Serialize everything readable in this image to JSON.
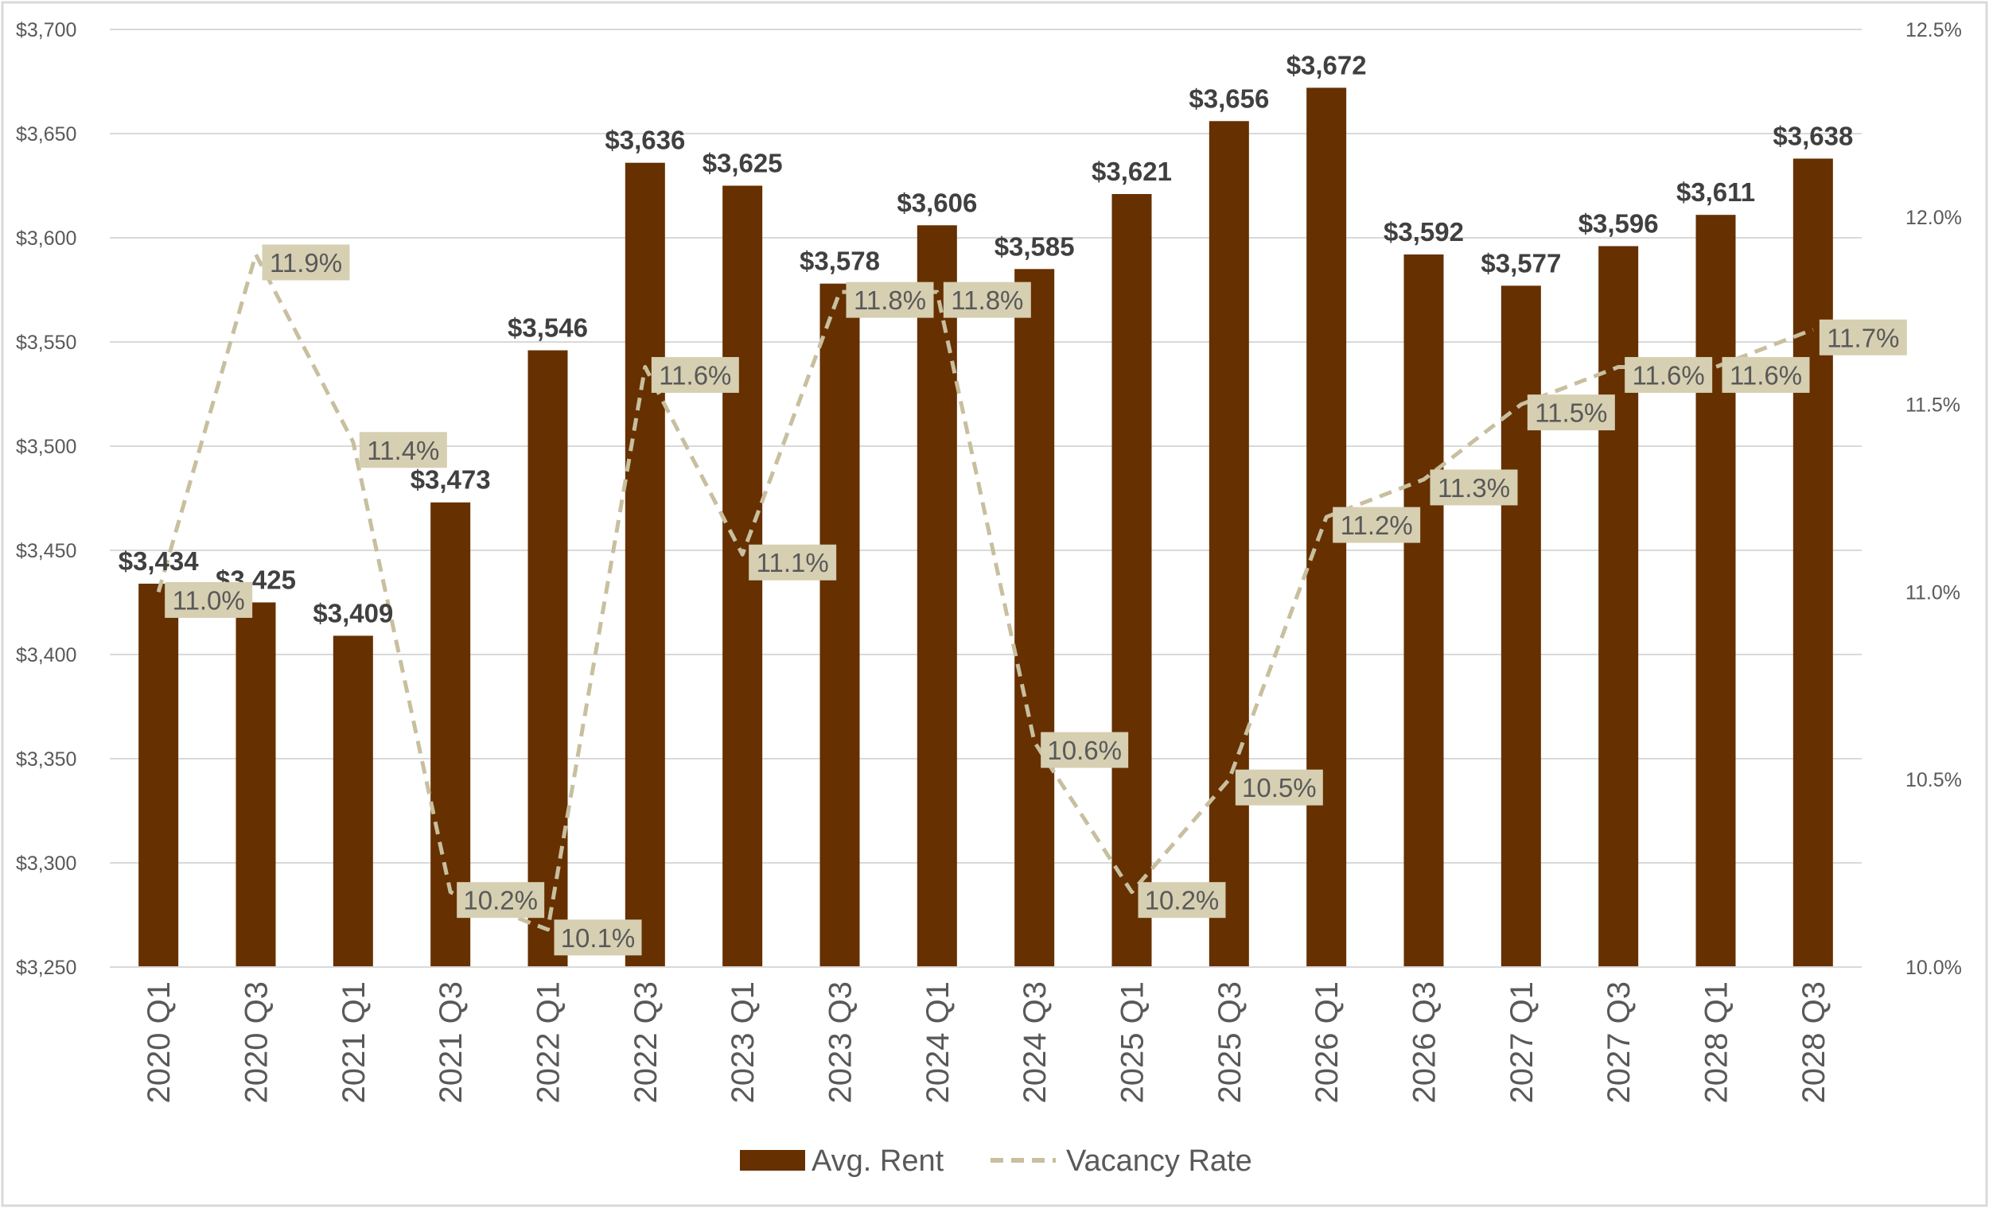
{
  "chart_data": {
    "type": "bar",
    "categories": [
      "2020 Q1",
      "2020 Q3",
      "2021 Q1",
      "2021 Q3",
      "2022 Q1",
      "2022 Q3",
      "2023 Q1",
      "2023 Q3",
      "2024 Q1",
      "2024 Q3",
      "2025 Q1",
      "2025 Q3",
      "2026 Q1",
      "2026 Q3",
      "2027 Q1",
      "2027 Q3",
      "2028 Q1",
      "2028 Q3"
    ],
    "series": [
      {
        "name": "Avg. Rent",
        "type": "bar",
        "axis": "left",
        "color": "#663000",
        "values": [
          3434,
          3425,
          3409,
          3473,
          3546,
          3636,
          3625,
          3578,
          3606,
          3585,
          3621,
          3656,
          3672,
          3592,
          3577,
          3596,
          3611,
          3638
        ],
        "labels": [
          "$3,434",
          "$3,425",
          "$3,409",
          "$3,473",
          "$3,546",
          "$3,636",
          "$3,625",
          "$3,578",
          "$3,606",
          "$3,585",
          "$3,621",
          "$3,656",
          "$3,672",
          "$3,592",
          "$3,577",
          "$3,596",
          "$3,611",
          "$3,638"
        ]
      },
      {
        "name": "Vacancy Rate",
        "type": "line",
        "style": "dashed",
        "axis": "right",
        "color": "#c8bf9f",
        "label_bg": "#d6cfb1",
        "values": [
          11.0,
          11.9,
          11.4,
          10.2,
          10.1,
          11.6,
          11.1,
          11.8,
          11.8,
          10.6,
          10.2,
          10.5,
          11.2,
          11.3,
          11.5,
          11.6,
          11.6,
          11.7
        ],
        "labels": [
          "11.0%",
          "11.9%",
          "11.4%",
          "10.2%",
          "10.1%",
          "11.6%",
          "11.1%",
          "11.8%",
          "11.8%",
          "10.6%",
          "10.2%",
          "10.5%",
          "11.2%",
          "11.3%",
          "11.5%",
          "11.6%",
          "11.6%",
          "11.7%"
        ]
      }
    ],
    "y_left": {
      "ylim": [
        3250,
        3700
      ],
      "ticks": [
        "$3,250",
        "$3,300",
        "$3,350",
        "$3,400",
        "$3,450",
        "$3,500",
        "$3,550",
        "$3,600",
        "$3,650",
        "$3,700"
      ]
    },
    "y_right": {
      "ylim": [
        10.0,
        12.5
      ],
      "ticks": [
        "10.0%",
        "10.5%",
        "11.0%",
        "11.5%",
        "12.0%",
        "12.5%"
      ]
    },
    "grid": true,
    "legend": "bottom-center",
    "colors": {
      "gridline": "#d9d9d9",
      "axis_text": "#595959",
      "bar_label": "#404040"
    }
  }
}
